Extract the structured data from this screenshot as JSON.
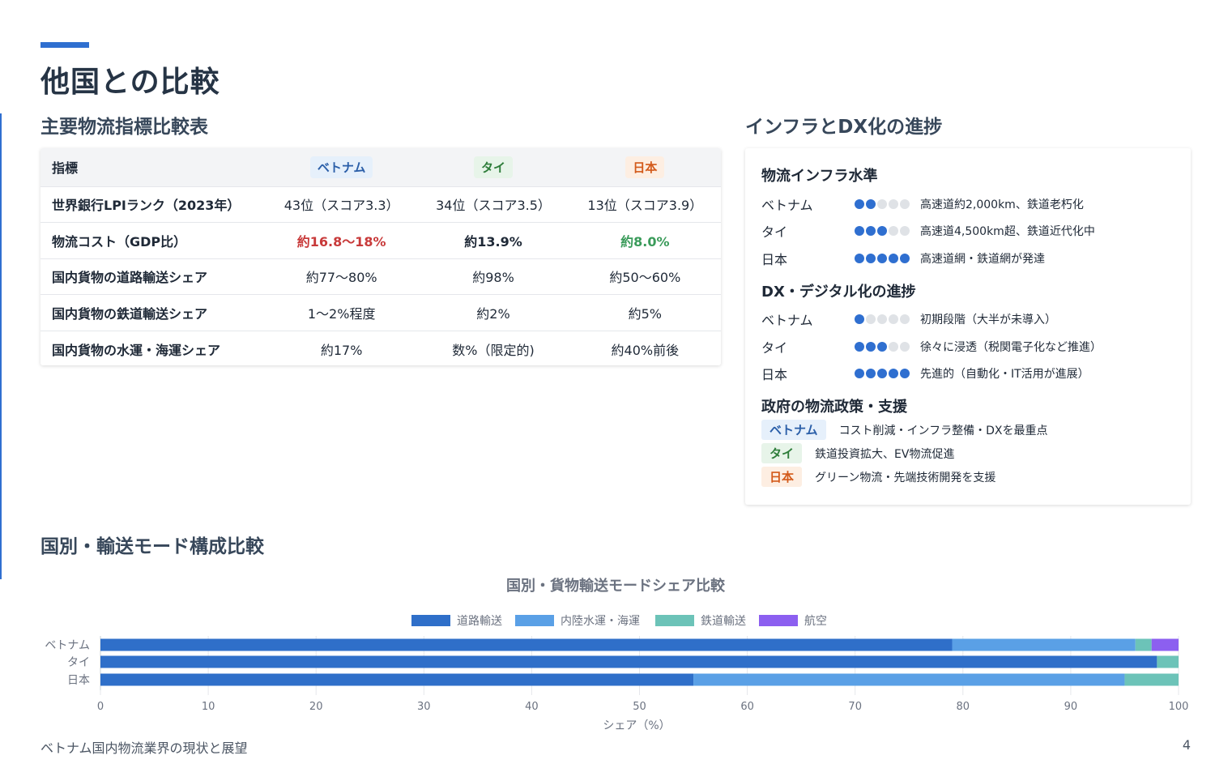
{
  "page": {
    "title": "他国との比較",
    "page_number": "4",
    "footer": "ベトナム国内物流業界の現状と展望"
  },
  "table_section": {
    "title": "主要物流指標比較表",
    "headers": [
      "指標",
      "ベトナム",
      "タイ",
      "日本"
    ],
    "rows": [
      {
        "label": "世界銀行LPIランク（2023年）",
        "vn": "43位（スコア3.3）",
        "th": "34位（スコア3.5）",
        "jp": "13位（スコア3.9）"
      },
      {
        "label": "物流コスト（GDP比）",
        "vn": "約16.8〜18%",
        "th": "約13.9%",
        "jp": "約8.0%"
      },
      {
        "label": "国内貨物の道路輸送シェア",
        "vn": "約77〜80%",
        "th": "約98%",
        "jp": "約50〜60%"
      },
      {
        "label": "国内貨物の鉄道輸送シェア",
        "vn": "1〜2%程度",
        "th": "約2%",
        "jp": "約5%"
      },
      {
        "label": "国内貨物の水運・海運シェア",
        "vn": "約17%",
        "th": "数%（限定的)",
        "jp": "約40%前後"
      }
    ]
  },
  "infra_section": {
    "title": "インフラとDX化の進捗",
    "infra": {
      "title": "物流インフラ水準",
      "rows": [
        {
          "country": "ベトナム",
          "level": 2,
          "desc": "高速道約2,000km、鉄道老朽化"
        },
        {
          "country": "タイ",
          "level": 3,
          "desc": "高速道4,500km超、鉄道近代化中"
        },
        {
          "country": "日本",
          "level": 5,
          "desc": "高速道網・鉄道網が発達"
        }
      ]
    },
    "dx": {
      "title": "DX・デジタル化の進捗",
      "rows": [
        {
          "country": "ベトナム",
          "level": 1,
          "desc": "初期段階（大半が未導入）"
        },
        {
          "country": "タイ",
          "level": 3,
          "desc": "徐々に浸透（税関電子化など推進）"
        },
        {
          "country": "日本",
          "level": 5,
          "desc": "先進的（自動化・IT活用が進展）"
        }
      ]
    },
    "policy": {
      "title": "政府の物流政策・支援",
      "rows": [
        {
          "country": "ベトナム",
          "desc": "コスト削減・インフラ整備・DXを最重点"
        },
        {
          "country": "タイ",
          "desc": "鉄道投資拡大、EV物流促進"
        },
        {
          "country": "日本",
          "desc": "グリーン物流・先端技術開発を支援"
        }
      ]
    }
  },
  "chart_section": {
    "title": "国別・輸送モード構成比較"
  },
  "chart_data": {
    "type": "bar",
    "orientation": "horizontal",
    "stacked": true,
    "title": "国別・貨物輸送モードシェア比較",
    "xlabel": "シェア（%）",
    "ylabel": "",
    "xlim": [
      0,
      100
    ],
    "xticks": [
      0,
      10,
      20,
      30,
      40,
      50,
      60,
      70,
      80,
      90,
      100
    ],
    "categories": [
      "ベトナム",
      "タイ",
      "日本"
    ],
    "legend_position": "top",
    "grid": true,
    "series": [
      {
        "name": "道路輸送",
        "color": "#2f6fc9",
        "values": [
          79,
          98,
          55
        ]
      },
      {
        "name": "内陸水運・海運",
        "color": "#5aa0e6",
        "values": [
          17,
          0,
          40
        ]
      },
      {
        "name": "鉄道輸送",
        "color": "#6cc3b8",
        "values": [
          1.5,
          2,
          5
        ]
      },
      {
        "name": "航空",
        "color": "#8c5ff0",
        "values": [
          2.5,
          0,
          0
        ]
      }
    ]
  }
}
